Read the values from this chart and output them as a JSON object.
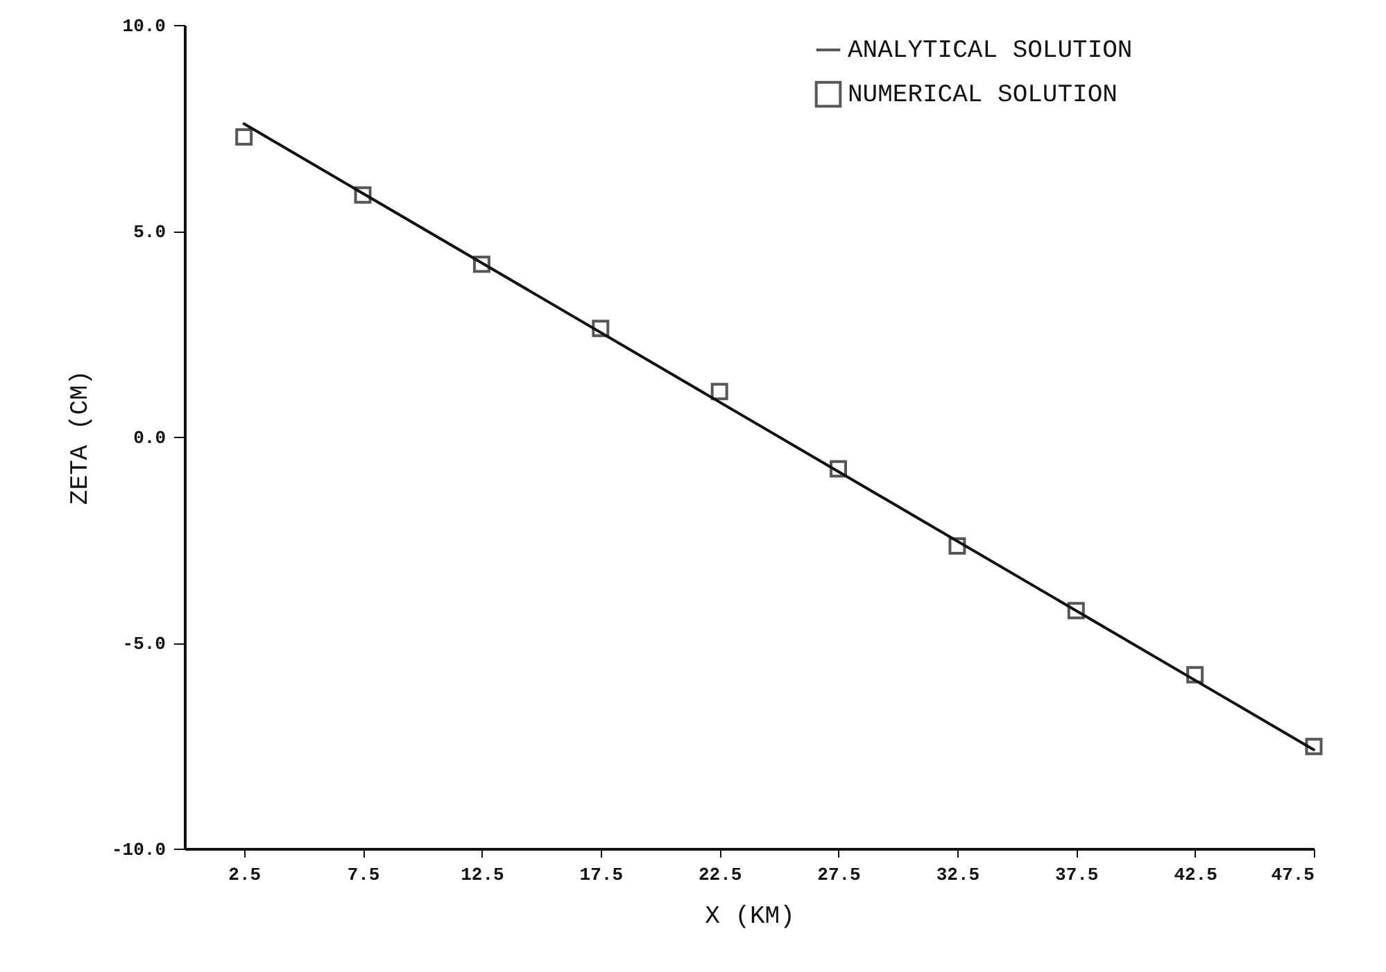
{
  "chart_data": {
    "type": "line",
    "xlabel": "X (KM)",
    "ylabel": "ZETA (CM)",
    "xlim": [
      0,
      47.5
    ],
    "xticks": [
      2.5,
      7.5,
      12.5,
      17.5,
      22.5,
      27.5,
      32.5,
      37.5,
      42.5,
      47.5
    ],
    "ylim": [
      -10,
      10
    ],
    "yticks": [
      {
        "value": -10,
        "label": "-10.0"
      },
      {
        "value": -5,
        "label": "-5.0"
      },
      {
        "value": 0,
        "label": "0.0"
      },
      {
        "value": 5,
        "label": "5.0"
      },
      {
        "value": 10,
        "label": "10.0"
      }
    ],
    "grid": false,
    "legend": "top right",
    "series": [
      {
        "name": "ANALYTICAL SOLUTION",
        "color": "#111111",
        "line_style": "solid",
        "marker": "none",
        "x": [
          2.5,
          47.5
        ],
        "values": [
          7.6,
          -7.6
        ]
      },
      {
        "name": "NUMERICAL SOLUTION",
        "type": "scatter",
        "color": "#111111",
        "marker": "square",
        "x": [
          2.5,
          7.5,
          12.5,
          17.5,
          22.5,
          27.5,
          32.5,
          37.5,
          42.5,
          47.5
        ],
        "values": [
          7.28,
          5.87,
          4.19,
          2.63,
          1.1,
          -0.78,
          -2.65,
          -4.22,
          -5.78,
          -7.52
        ]
      }
    ]
  }
}
